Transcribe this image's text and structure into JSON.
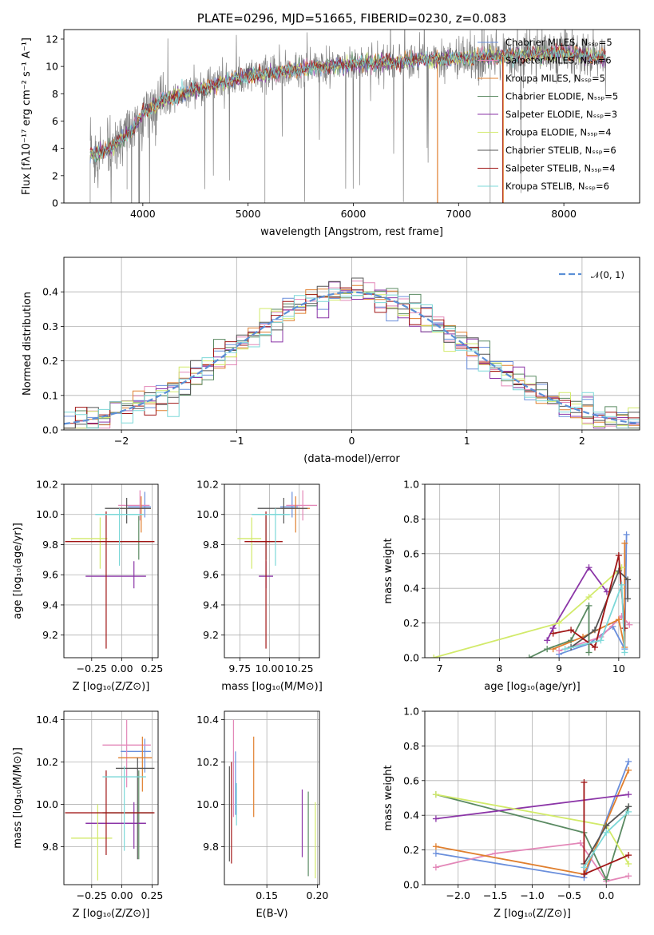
{
  "colors": {
    "chabrier_miles": "#6a8fdc",
    "salpeter_miles": "#e387b8",
    "kroupa_miles": "#e07f2e",
    "chabrier_elodie": "#5a8a62",
    "salpeter_elodie": "#8b35a7",
    "kroupa_elodie": "#d2ea6a",
    "chabrier_stelib": "#555555",
    "salpeter_stelib": "#a01515",
    "kroupa_stelib": "#7cd8d8",
    "data": "#808080"
  },
  "chart_data": [
    {
      "id": "spectrum",
      "type": "line",
      "title": "PLATE=0296, MJD=51665, FIBERID=0230, z=0.083",
      "xlabel": "wavelength [Angstrom, rest frame]",
      "ylabel": "Flux [fλ10⁻¹⁷ erg cm⁻² s⁻¹ A⁻¹]",
      "xlim": [
        3250,
        8720
      ],
      "ylim": [
        0,
        12.7
      ],
      "xticks": [
        "4000",
        "5000",
        "6000",
        "7000",
        "8000"
      ],
      "yticks": [
        "0",
        "2",
        "4",
        "6",
        "8",
        "10",
        "12"
      ],
      "legend_position": "top-right",
      "legend": [
        "Chabrier MILES, Nₛₛₚ=5",
        "Salpeter MILES, Nₛₛₚ=6",
        "Kroupa MILES, Nₛₛₚ=5",
        "Chabrier ELODIE, Nₛₛₚ=5",
        "Salpeter ELODIE, Nₛₛₚ=3",
        "Kroupa ELODIE, Nₛₛₚ=4",
        "Chabrier STELIB, Nₛₛₚ=6",
        "Salpeter STELIB, Nₛₛₚ=4",
        "Kroupa STELIB, Nₛₛₚ=6"
      ],
      "continuum": [
        [
          3500,
          3.5
        ],
        [
          3700,
          4.0
        ],
        [
          3900,
          5.3
        ],
        [
          4000,
          6.6
        ],
        [
          4200,
          7.6
        ],
        [
          4500,
          8.2
        ],
        [
          4800,
          8.9
        ],
        [
          5000,
          9.3
        ],
        [
          5300,
          9.6
        ],
        [
          5700,
          10.0
        ],
        [
          6000,
          10.2
        ],
        [
          6500,
          10.4
        ],
        [
          7000,
          10.6
        ],
        [
          7500,
          10.8
        ],
        [
          8000,
          11.0
        ],
        [
          8400,
          10.6
        ]
      ],
      "grid": false
    },
    {
      "id": "residuals",
      "type": "bar",
      "xlabel": "(data-model)/error",
      "ylabel": "Normed distribution",
      "xlim": [
        -2.5,
        2.5
      ],
      "ylim": [
        0,
        0.5
      ],
      "xticks": [
        "−2",
        "−1",
        "0",
        "1",
        "2"
      ],
      "yticks": [
        "0.0",
        "0.1",
        "0.2",
        "0.3",
        "0.4"
      ],
      "legend": [
        "𝒩(0, 1)"
      ],
      "legend_position": "top-right",
      "bin_width": 0.1,
      "grid": true
    },
    {
      "id": "age-vs-Z",
      "type": "scatter",
      "xlabel": "Z [log₁₀(Z/Z⊙)]",
      "ylabel": "age  [log₁₀(age/yr)]",
      "xlim": [
        -0.48,
        0.3
      ],
      "ylim": [
        9.05,
        10.2
      ],
      "xticks": [
        "−0.25",
        "0.00",
        "0.25"
      ],
      "yticks": [
        "9.2",
        "9.4",
        "9.6",
        "9.8",
        "10.0",
        "10.2"
      ],
      "points": [
        {
          "series": "chabrier_miles",
          "x": 0.19,
          "y": 10.05,
          "xerr": [
            0.14,
            0.05
          ],
          "yerr": [
            0.07,
            0.1
          ]
        },
        {
          "series": "salpeter_miles",
          "x": 0.15,
          "y": 10.06,
          "xerr": [
            0.18,
            0.08
          ],
          "yerr": [
            0.1,
            0.1
          ]
        },
        {
          "series": "kroupa_miles",
          "x": 0.16,
          "y": 10.04,
          "xerr": [
            0.2,
            0.08
          ],
          "yerr": [
            0.16,
            0.08
          ]
        },
        {
          "series": "chabrier_elodie",
          "x": 0.14,
          "y": 9.82,
          "xerr": [
            0.26,
            0.1
          ],
          "yerr": [
            0.12,
            0.17
          ]
        },
        {
          "series": "salpeter_elodie",
          "x": 0.1,
          "y": 9.59,
          "xerr": [
            0.4,
            0.1
          ],
          "yerr": [
            0.08,
            0.1
          ]
        },
        {
          "series": "kroupa_elodie",
          "x": -0.18,
          "y": 9.84,
          "xerr": [
            0.24,
            0.06
          ],
          "yerr": [
            0.2,
            0.14
          ]
        },
        {
          "series": "chabrier_stelib",
          "x": 0.04,
          "y": 10.04,
          "xerr": [
            0.18,
            0.2
          ],
          "yerr": [
            0.1,
            0.07
          ]
        },
        {
          "series": "salpeter_stelib",
          "x": -0.13,
          "y": 9.82,
          "xerr": [
            0.34,
            0.4
          ],
          "yerr": [
            0.71,
            0.2
          ]
        },
        {
          "series": "kroupa_stelib",
          "x": -0.02,
          "y": 10.0,
          "xerr": [
            0.2,
            0.2
          ],
          "yerr": [
            0.34,
            0.04
          ]
        }
      ],
      "grid": true
    },
    {
      "id": "age-vs-mass",
      "type": "scatter",
      "xlabel": "mass [log₁₀(M/M⊙)]",
      "ylabel": "",
      "xlim": [
        9.62,
        10.42
      ],
      "ylim": [
        9.05,
        10.2
      ],
      "xticks": [
        "9.75",
        "10.00",
        "10.25"
      ],
      "yticks": [
        "9.2",
        "9.4",
        "9.6",
        "9.8",
        "10.0",
        "10.2"
      ],
      "points": [
        {
          "series": "chabrier_miles",
          "x": 10.19,
          "y": 10.05,
          "xerr": [
            0.1,
            0.05
          ],
          "yerr": [
            0.07,
            0.1
          ]
        },
        {
          "series": "salpeter_miles",
          "x": 10.28,
          "y": 10.06,
          "xerr": [
            0.14,
            0.12
          ],
          "yerr": [
            0.1,
            0.1
          ]
        },
        {
          "series": "kroupa_miles",
          "x": 10.22,
          "y": 10.04,
          "xerr": [
            0.12,
            0.12
          ],
          "yerr": [
            0.16,
            0.08
          ]
        },
        {
          "series": "chabrier_elodie",
          "x": 9.97,
          "y": 9.82,
          "xerr": [
            0.1,
            0.08
          ],
          "yerr": [
            0.12,
            0.17
          ]
        },
        {
          "series": "salpeter_elodie",
          "x": 9.97,
          "y": 9.59,
          "xerr": [
            0.06,
            0.06
          ],
          "yerr": [
            0.08,
            0.1
          ]
        },
        {
          "series": "kroupa_elodie",
          "x": 9.85,
          "y": 9.84,
          "xerr": [
            0.12,
            0.08
          ],
          "yerr": [
            0.2,
            0.14
          ]
        },
        {
          "series": "chabrier_stelib",
          "x": 10.12,
          "y": 10.04,
          "xerr": [
            0.22,
            0.2
          ],
          "yerr": [
            0.1,
            0.07
          ]
        },
        {
          "series": "salpeter_stelib",
          "x": 9.97,
          "y": 9.82,
          "xerr": [
            0.18,
            0.14
          ],
          "yerr": [
            0.71,
            0.2
          ]
        },
        {
          "series": "kroupa_stelib",
          "x": 10.05,
          "y": 10.0,
          "xerr": [
            0.2,
            0.12
          ],
          "yerr": [
            0.34,
            0.04
          ]
        }
      ],
      "grid": true
    },
    {
      "id": "massweight-vs-age",
      "type": "line",
      "xlabel": "age  [log₁₀(age/yr)]",
      "ylabel": "mass weight",
      "xlim": [
        6.75,
        10.35
      ],
      "ylim": [
        0,
        1.0
      ],
      "xticks": [
        "7",
        "8",
        "9",
        "10"
      ],
      "yticks": [
        "0.0",
        "0.2",
        "0.4",
        "0.6",
        "0.8",
        "1.0"
      ],
      "series": [
        {
          "key": "chabrier_miles",
          "points": [
            [
              9.0,
              0.02
            ],
            [
              9.5,
              0.08
            ],
            [
              9.9,
              0.18
            ],
            [
              10.1,
              0.05
            ],
            [
              10.13,
              0.71
            ]
          ]
        },
        {
          "key": "salpeter_miles",
          "points": [
            [
              9.0,
              0.04
            ],
            [
              9.7,
              0.12
            ],
            [
              10.05,
              0.24
            ],
            [
              10.18,
              0.19
            ]
          ]
        },
        {
          "key": "kroupa_miles",
          "points": [
            [
              8.9,
              0.05
            ],
            [
              9.4,
              0.12
            ],
            [
              10.0,
              0.22
            ],
            [
              10.1,
              0.06
            ],
            [
              10.1,
              0.66
            ]
          ]
        },
        {
          "key": "chabrier_elodie",
          "points": [
            [
              8.5,
              0.0
            ],
            [
              8.8,
              0.05
            ],
            [
              9.2,
              0.1
            ],
            [
              9.5,
              0.3
            ],
            [
              9.5,
              0.03
            ]
          ]
        },
        {
          "key": "salpeter_elodie",
          "points": [
            [
              8.8,
              0.1
            ],
            [
              8.9,
              0.17
            ],
            [
              9.5,
              0.52
            ],
            [
              9.8,
              0.38
            ]
          ]
        },
        {
          "key": "kroupa_elodie",
          "points": [
            [
              6.9,
              0.0
            ],
            [
              9.0,
              0.2
            ],
            [
              9.5,
              0.35
            ],
            [
              10.05,
              0.52
            ]
          ]
        },
        {
          "key": "chabrier_stelib",
          "points": [
            [
              9.2,
              0.06
            ],
            [
              9.6,
              0.16
            ],
            [
              10.0,
              0.5
            ],
            [
              10.15,
              0.45
            ],
            [
              10.15,
              0.34
            ]
          ]
        },
        {
          "key": "salpeter_stelib",
          "points": [
            [
              8.9,
              0.14
            ],
            [
              9.2,
              0.16
            ],
            [
              9.6,
              0.06
            ],
            [
              10.0,
              0.59
            ],
            [
              10.1,
              0.17
            ]
          ]
        },
        {
          "key": "kroupa_stelib",
          "points": [
            [
              9.1,
              0.05
            ],
            [
              9.7,
              0.1
            ],
            [
              10.05,
              0.42
            ],
            [
              10.1,
              0.03
            ]
          ]
        }
      ],
      "grid": true
    },
    {
      "id": "mass-vs-Z",
      "type": "scatter",
      "xlabel": "Z [log₁₀(Z/Z⊙)]",
      "ylabel": "mass [log₁₀(M/M⊙)]",
      "xlim": [
        -0.48,
        0.3
      ],
      "ylim": [
        9.62,
        10.44
      ],
      "xticks": [
        "−0.25",
        "0.00",
        "0.25"
      ],
      "yticks": [
        "9.8",
        "10.0",
        "10.2",
        "10.4"
      ],
      "points": [
        {
          "series": "chabrier_miles",
          "x": 0.19,
          "y": 10.25,
          "xerr": [
            0.2,
            0.05
          ],
          "yerr": [
            0.1,
            0.06
          ]
        },
        {
          "series": "salpeter_miles",
          "x": 0.04,
          "y": 10.28,
          "xerr": [
            0.2,
            0.2
          ],
          "yerr": [
            0.2,
            0.12
          ]
        },
        {
          "series": "kroupa_miles",
          "x": 0.17,
          "y": 10.22,
          "xerr": [
            0.2,
            0.08
          ],
          "yerr": [
            0.16,
            0.1
          ]
        },
        {
          "series": "chabrier_elodie",
          "x": 0.14,
          "y": 9.96,
          "xerr": [
            0.3,
            0.12
          ],
          "yerr": [
            0.22,
            0.2
          ]
        },
        {
          "series": "salpeter_elodie",
          "x": 0.1,
          "y": 9.91,
          "xerr": [
            0.4,
            0.1
          ],
          "yerr": [
            0.12,
            0.1
          ]
        },
        {
          "series": "kroupa_elodie",
          "x": -0.2,
          "y": 9.84,
          "xerr": [
            0.22,
            0.12
          ],
          "yerr": [
            0.2,
            0.16
          ]
        },
        {
          "series": "chabrier_stelib",
          "x": 0.13,
          "y": 10.17,
          "xerr": [
            0.18,
            0.14
          ],
          "yerr": [
            0.43,
            0.05
          ]
        },
        {
          "series": "salpeter_stelib",
          "x": -0.13,
          "y": 9.96,
          "xerr": [
            0.34,
            0.4
          ],
          "yerr": [
            0.2,
            0.2
          ]
        },
        {
          "series": "kroupa_stelib",
          "x": 0.02,
          "y": 10.13,
          "xerr": [
            0.18,
            0.18
          ],
          "yerr": [
            0.35,
            0.05
          ]
        }
      ],
      "grid": true
    },
    {
      "id": "mass-vs-EBV",
      "type": "scatter",
      "xlabel": "E(B-V)",
      "ylabel": "",
      "xlim": [
        0.108,
        0.202
      ],
      "ylim": [
        9.62,
        10.44
      ],
      "xticks": [
        "0.15",
        "0.20"
      ],
      "yticks": [
        "9.8",
        "10.0",
        "10.2",
        "10.4"
      ],
      "points": [
        {
          "series": "chabrier_miles",
          "x": 0.119,
          "y": 10.05,
          "yerr": [
            0.1,
            0.2
          ]
        },
        {
          "series": "salpeter_miles",
          "x": 0.117,
          "y": 10.14,
          "yerr": [
            0.2,
            0.26
          ]
        },
        {
          "series": "kroupa_miles",
          "x": 0.137,
          "y": 10.13,
          "yerr": [
            0.19,
            0.19
          ]
        },
        {
          "series": "chabrier_elodie",
          "x": 0.191,
          "y": 9.86,
          "yerr": [
            0.2,
            0.2
          ]
        },
        {
          "series": "salpeter_elodie",
          "x": 0.185,
          "y": 9.91,
          "yerr": [
            0.16,
            0.16
          ]
        },
        {
          "series": "kroupa_elodie",
          "x": 0.198,
          "y": 9.83,
          "yerr": [
            0.18,
            0.18
          ]
        },
        {
          "series": "chabrier_stelib",
          "x": 0.113,
          "y": 9.93,
          "yerr": [
            0.2,
            0.25
          ]
        },
        {
          "series": "salpeter_stelib",
          "x": 0.115,
          "y": 9.96,
          "yerr": [
            0.24,
            0.24
          ]
        },
        {
          "series": "kroupa_stelib",
          "x": 0.12,
          "y": 10.0,
          "yerr": [
            0.1,
            0.1
          ]
        }
      ],
      "grid": true
    },
    {
      "id": "massweight-vs-Z",
      "type": "line",
      "xlabel": "Z [log₁₀(Z/Z⊙)]",
      "ylabel": "mass weight",
      "xlim": [
        -2.45,
        0.45
      ],
      "ylim": [
        0,
        1.0
      ],
      "xticks": [
        "−2.0",
        "−1.5",
        "−1.0",
        "−0.5",
        "0.0"
      ],
      "yticks": [
        "0.0",
        "0.2",
        "0.4",
        "0.6",
        "0.8",
        "1.0"
      ],
      "series": [
        {
          "key": "chabrier_miles",
          "points": [
            [
              -2.3,
              0.18
            ],
            [
              -0.3,
              0.04
            ],
            [
              0.3,
              0.71
            ]
          ]
        },
        {
          "key": "salpeter_miles",
          "points": [
            [
              -2.3,
              0.1
            ],
            [
              -1.5,
              0.18
            ],
            [
              -0.35,
              0.24
            ],
            [
              0.0,
              0.02
            ],
            [
              0.3,
              0.05
            ]
          ]
        },
        {
          "key": "kroupa_miles",
          "points": [
            [
              -2.3,
              0.22
            ],
            [
              -0.3,
              0.06
            ],
            [
              0.3,
              0.66
            ]
          ]
        },
        {
          "key": "chabrier_elodie",
          "points": [
            [
              -2.3,
              0.52
            ],
            [
              -0.3,
              0.3
            ],
            [
              0.0,
              0.03
            ],
            [
              0.3,
              0.45
            ]
          ]
        },
        {
          "key": "salpeter_elodie",
          "points": [
            [
              -2.3,
              0.38
            ],
            [
              0.3,
              0.52
            ]
          ]
        },
        {
          "key": "kroupa_elodie",
          "points": [
            [
              -2.3,
              0.52
            ],
            [
              0.0,
              0.34
            ],
            [
              0.3,
              0.12
            ]
          ]
        },
        {
          "key": "chabrier_stelib",
          "points": [
            [
              -0.3,
              0.12
            ],
            [
              0.0,
              0.34
            ],
            [
              0.3,
              0.45
            ]
          ]
        },
        {
          "key": "salpeter_stelib",
          "points": [
            [
              -0.3,
              0.59
            ],
            [
              -0.3,
              0.06
            ],
            [
              0.3,
              0.17
            ]
          ]
        },
        {
          "key": "kroupa_stelib",
          "points": [
            [
              -0.3,
              0.1
            ],
            [
              0.0,
              0.3
            ],
            [
              0.3,
              0.42
            ]
          ]
        }
      ],
      "grid": true
    }
  ]
}
